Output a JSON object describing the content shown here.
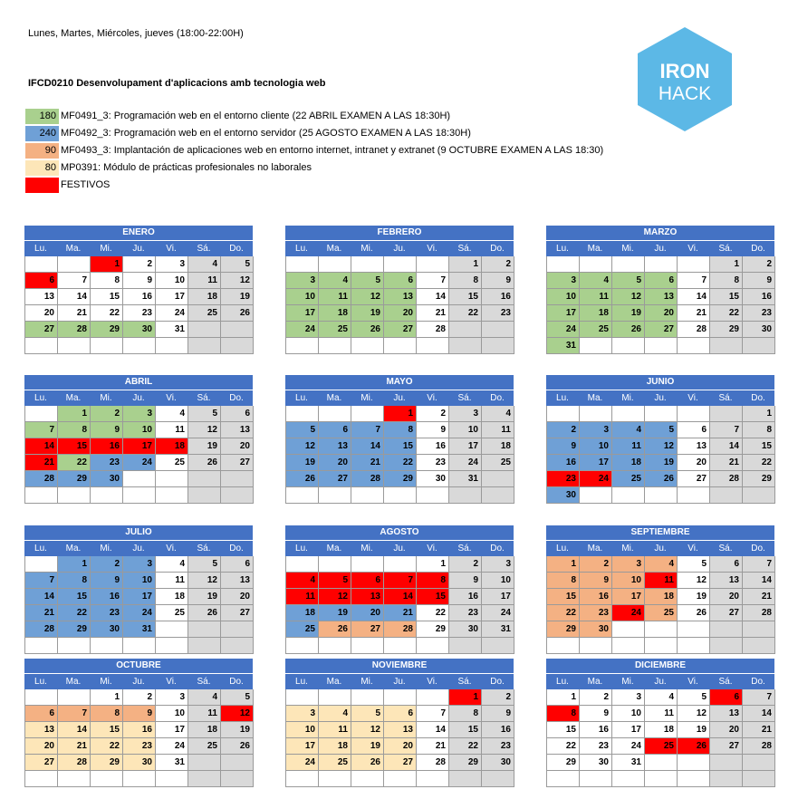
{
  "header": {
    "schedule": "Lunes, Martes, Miércoles, jueves (18:00-22:00H)",
    "course_title": "IFCD0210 Desenvolupament d'aplicacions amb tecnologia web"
  },
  "logo": {
    "line1": "IRON",
    "line2": "HACK",
    "color": "#5cb8e6"
  },
  "legend": [
    {
      "hours": "180",
      "text": "MF0491_3: Programación web en el entorno cliente (22 ABRIL EXAMEN A LAS 18:30H)",
      "color": "#a9d08e"
    },
    {
      "hours": "240",
      "text": "MF0492_3: Programación web en el entorno servidor (25 AGOSTO EXAMEN  A LAS 18:30H)",
      "color": "#6fa0d6"
    },
    {
      "hours": "90",
      "text": "MF0493_3: Implantación de aplicaciones web en entorno internet, intranet y extranet (9 OCTUBRE EXAMEN A LAS 18:30)",
      "color": "#f4b183"
    },
    {
      "hours": "80",
      "text": "MP0391: Módulo de prácticas profesionales no laborales",
      "color": "#fde6b8"
    },
    {
      "hours": "",
      "text": "FESTIVOS",
      "color": "#ff0000"
    }
  ],
  "weekdays": [
    "Lu.",
    "Ma.",
    "Mi.",
    "Ju.",
    "Vi.",
    "Sá.",
    "Do."
  ],
  "months": [
    {
      "name": "ENERO",
      "offset": 2,
      "days": 31,
      "c180": [
        27,
        28,
        29,
        30
      ],
      "c240": [],
      "c90": [],
      "c80": [],
      "fest": [
        1,
        6
      ]
    },
    {
      "name": "FEBRERO",
      "offset": 5,
      "days": 28,
      "c180": [
        3,
        4,
        5,
        6,
        10,
        11,
        12,
        13,
        17,
        18,
        19,
        20,
        24,
        25,
        26,
        27
      ],
      "c240": [],
      "c90": [],
      "c80": [],
      "fest": []
    },
    {
      "name": "MARZO",
      "offset": 5,
      "days": 31,
      "c180": [
        3,
        4,
        5,
        6,
        10,
        11,
        12,
        13,
        17,
        18,
        19,
        20,
        24,
        25,
        26,
        27,
        31
      ],
      "c240": [],
      "c90": [],
      "c80": [],
      "fest": []
    },
    {
      "name": "ABRIL",
      "offset": 1,
      "days": 30,
      "c180": [
        1,
        2,
        3,
        7,
        8,
        9,
        10,
        22
      ],
      "c240": [
        23,
        24,
        28,
        29,
        30
      ],
      "c90": [],
      "c80": [],
      "fest": [
        14,
        15,
        16,
        17,
        18,
        21
      ]
    },
    {
      "name": "MAYO",
      "offset": 3,
      "days": 31,
      "c180": [],
      "c240": [
        5,
        6,
        7,
        8,
        12,
        13,
        14,
        15,
        19,
        20,
        21,
        22,
        26,
        27,
        28,
        29
      ],
      "c90": [],
      "c80": [],
      "fest": [
        1
      ]
    },
    {
      "name": "JUNIO",
      "offset": 6,
      "days": 30,
      "c180": [],
      "c240": [
        2,
        3,
        4,
        5,
        9,
        10,
        11,
        12,
        16,
        17,
        18,
        19,
        25,
        26,
        30
      ],
      "c90": [],
      "c80": [],
      "fest": [
        23,
        24
      ]
    },
    {
      "name": "JULIO",
      "offset": 1,
      "days": 31,
      "c180": [],
      "c240": [
        1,
        2,
        3,
        7,
        8,
        9,
        10,
        14,
        15,
        16,
        17,
        21,
        22,
        23,
        24,
        28,
        29,
        30,
        31
      ],
      "c90": [],
      "c80": [],
      "fest": []
    },
    {
      "name": "AGOSTO",
      "offset": 4,
      "days": 31,
      "c180": [],
      "c240": [
        18,
        19,
        20,
        21,
        25
      ],
      "c90": [
        26,
        27,
        28
      ],
      "c80": [],
      "fest": [
        4,
        5,
        6,
        7,
        8,
        11,
        12,
        13,
        14,
        15
      ]
    },
    {
      "name": "SEPTIEMBRE",
      "offset": 0,
      "days": 30,
      "c180": [],
      "c240": [],
      "c90": [
        1,
        2,
        3,
        4,
        8,
        9,
        10,
        15,
        16,
        17,
        18,
        22,
        23,
        25,
        29,
        30
      ],
      "c80": [],
      "fest": [
        11,
        24
      ]
    },
    {
      "name": "OCTUBRE",
      "offset": 2,
      "days": 31,
      "c180": [],
      "c240": [],
      "c90": [
        6,
        7,
        8,
        9
      ],
      "c80": [
        13,
        14,
        15,
        16,
        20,
        21,
        22,
        23,
        27,
        28,
        29,
        30
      ],
      "fest": [
        12
      ]
    },
    {
      "name": "NOVIEMBRE",
      "offset": 5,
      "days": 30,
      "c180": [],
      "c240": [],
      "c90": [],
      "c80": [
        3,
        4,
        5,
        6,
        10,
        11,
        12,
        13,
        17,
        18,
        19,
        20,
        24,
        25,
        26,
        27
      ],
      "fest": [
        1
      ]
    },
    {
      "name": "DICIEMBRE",
      "offset": 0,
      "days": 31,
      "c180": [],
      "c240": [],
      "c90": [],
      "c80": [],
      "fest": [
        6,
        8,
        25,
        26
      ]
    }
  ]
}
